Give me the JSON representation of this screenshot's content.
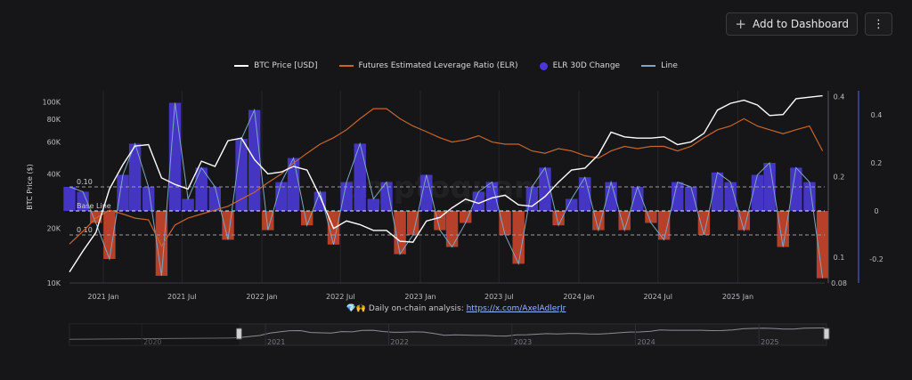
{
  "toolbar": {
    "add_label": "Add to Dashboard",
    "more_label": "⋮"
  },
  "legend": [
    {
      "label": "BTC Price [USD]",
      "color": "#ffffff",
      "kind": "line"
    },
    {
      "label": "Futures Estimated Leverage Ratio (ELR)",
      "color": "#c8652b",
      "kind": "line"
    },
    {
      "label": "ELR 30D Change",
      "color": "#4a38d6",
      "kind": "dot"
    },
    {
      "label": "Line",
      "color": "#7ea6c4",
      "kind": "line"
    }
  ],
  "footer": {
    "prefix": "💎🙌 Daily on-chain analysis: ",
    "link": "https://x.com/AxelAdlerJr"
  },
  "watermark": "cryptoquant",
  "chart_data": {
    "type": "line",
    "ylabel": "BTC Price ($)",
    "x_ticks": [
      "2021 Jan",
      "2021 Jul",
      "2022 Jan",
      "2022 Jul",
      "2023 Jan",
      "2023 Jul",
      "2024 Jan",
      "2024 Jul",
      "2025 Jan"
    ],
    "x_range": [
      "2020-10-15",
      "2025-07-20"
    ],
    "price_axis": {
      "scale": "log",
      "ticks": [
        "100K",
        "80K",
        "60K",
        "40K",
        "20K",
        "10K"
      ],
      "ylim": [
        10000,
        115000
      ]
    },
    "elr_axis": {
      "ticks": [
        "0.4",
        "0.2",
        "0.1",
        "0.08"
      ]
    },
    "change_axis": {
      "ticks": [
        "0.4",
        "0.2",
        "0",
        "-0.2"
      ],
      "ylim": [
        -0.3,
        0.5
      ]
    },
    "reference_lines": [
      {
        "label": "0.10",
        "value": 0.1
      },
      {
        "label": "Base Line",
        "value": 0
      },
      {
        "label": "0.10",
        "value": -0.1
      }
    ],
    "series": [
      {
        "name": "BTC Price [USD]",
        "x": [
          "2020-10",
          "2020-11",
          "2020-12",
          "2021-01",
          "2021-02",
          "2021-03",
          "2021-04",
          "2021-05",
          "2021-06",
          "2021-07",
          "2021-08",
          "2021-09",
          "2021-10",
          "2021-11",
          "2021-12",
          "2022-01",
          "2022-02",
          "2022-03",
          "2022-04",
          "2022-05",
          "2022-06",
          "2022-07",
          "2022-08",
          "2022-09",
          "2022-10",
          "2022-11",
          "2022-12",
          "2023-01",
          "2023-02",
          "2023-03",
          "2023-04",
          "2023-05",
          "2023-06",
          "2023-07",
          "2023-08",
          "2023-09",
          "2023-10",
          "2023-11",
          "2023-12",
          "2024-01",
          "2024-02",
          "2024-03",
          "2024-04",
          "2024-05",
          "2024-06",
          "2024-07",
          "2024-08",
          "2024-09",
          "2024-10",
          "2024-11",
          "2024-12",
          "2025-01",
          "2025-02",
          "2025-03",
          "2025-04",
          "2025-05",
          "2025-06",
          "2025-07"
        ],
        "values": [
          11500,
          15000,
          19000,
          33000,
          45000,
          57000,
          58000,
          38000,
          35000,
          33000,
          47000,
          44000,
          61000,
          63000,
          48000,
          40000,
          41000,
          44000,
          42000,
          30000,
          20000,
          22000,
          21000,
          19500,
          19500,
          17000,
          16800,
          22000,
          23000,
          26000,
          29000,
          27500,
          29500,
          30500,
          27000,
          26500,
          30000,
          36000,
          42000,
          43000,
          51000,
          68000,
          64000,
          63000,
          63000,
          64000,
          58000,
          60000,
          67000,
          90000,
          98000,
          102000,
          96000,
          84000,
          85000,
          104000,
          106000,
          108000
        ]
      },
      {
        "name": "Futures Estimated Leverage Ratio (ELR)",
        "x": [
          "2020-10",
          "2020-11",
          "2020-12",
          "2021-01",
          "2021-02",
          "2021-03",
          "2021-04",
          "2021-05",
          "2021-06",
          "2021-07",
          "2021-08",
          "2021-09",
          "2021-10",
          "2021-11",
          "2021-12",
          "2022-01",
          "2022-02",
          "2022-03",
          "2022-04",
          "2022-05",
          "2022-06",
          "2022-07",
          "2022-08",
          "2022-09",
          "2022-10",
          "2022-11",
          "2022-12",
          "2023-01",
          "2023-02",
          "2023-03",
          "2023-04",
          "2023-05",
          "2023-06",
          "2023-07",
          "2023-08",
          "2023-09",
          "2023-10",
          "2023-11",
          "2023-12",
          "2024-01",
          "2024-02",
          "2024-03",
          "2024-04",
          "2024-05",
          "2024-06",
          "2024-07",
          "2024-08",
          "2024-09",
          "2024-10",
          "2024-11",
          "2024-12",
          "2025-01",
          "2025-02",
          "2025-03",
          "2025-04",
          "2025-05",
          "2025-06",
          "2025-07"
        ],
        "values": [
          0.112,
          0.125,
          0.14,
          0.15,
          0.145,
          0.14,
          0.138,
          0.11,
          0.132,
          0.14,
          0.145,
          0.15,
          0.155,
          0.165,
          0.175,
          0.19,
          0.205,
          0.225,
          0.245,
          0.265,
          0.28,
          0.3,
          0.33,
          0.36,
          0.36,
          0.33,
          0.31,
          0.295,
          0.28,
          0.27,
          0.275,
          0.285,
          0.27,
          0.265,
          0.265,
          0.25,
          0.245,
          0.255,
          0.25,
          0.24,
          0.235,
          0.25,
          0.26,
          0.255,
          0.26,
          0.26,
          0.25,
          0.26,
          0.28,
          0.3,
          0.31,
          0.33,
          0.31,
          0.3,
          0.29,
          0.3,
          0.31,
          0.25
        ]
      },
      {
        "name": "ELR 30D Change",
        "x": [
          "2020-10",
          "2020-11",
          "2020-12",
          "2021-01",
          "2021-02",
          "2021-03",
          "2021-04",
          "2021-05",
          "2021-06",
          "2021-07",
          "2021-08",
          "2021-09",
          "2021-10",
          "2021-11",
          "2021-12",
          "2022-01",
          "2022-02",
          "2022-03",
          "2022-04",
          "2022-05",
          "2022-06",
          "2022-07",
          "2022-08",
          "2022-09",
          "2022-10",
          "2022-11",
          "2022-12",
          "2023-01",
          "2023-02",
          "2023-03",
          "2023-04",
          "2023-05",
          "2023-06",
          "2023-07",
          "2023-08",
          "2023-09",
          "2023-10",
          "2023-11",
          "2023-12",
          "2024-01",
          "2024-02",
          "2024-03",
          "2024-04",
          "2024-05",
          "2024-06",
          "2024-07",
          "2024-08",
          "2024-09",
          "2024-10",
          "2024-11",
          "2024-12",
          "2025-01",
          "2025-02",
          "2025-03",
          "2025-04",
          "2025-05",
          "2025-06",
          "2025-07"
        ],
        "values": [
          0.1,
          0.08,
          -0.05,
          -0.2,
          0.15,
          0.28,
          0.1,
          -0.27,
          0.45,
          0.05,
          0.18,
          0.1,
          -0.12,
          0.3,
          0.42,
          -0.08,
          0.12,
          0.22,
          -0.06,
          0.08,
          -0.14,
          0.12,
          0.28,
          0.05,
          0.12,
          -0.18,
          -0.1,
          0.15,
          -0.08,
          -0.15,
          -0.05,
          0.08,
          0.12,
          -0.1,
          -0.22,
          0.1,
          0.18,
          -0.06,
          0.05,
          0.14,
          -0.08,
          0.12,
          -0.08,
          0.1,
          -0.05,
          -0.12,
          0.12,
          0.1,
          -0.1,
          0.16,
          0.12,
          -0.08,
          0.15,
          0.2,
          -0.15,
          0.18,
          0.12,
          -0.28
        ]
      }
    ],
    "navigator": {
      "ticks": [
        "2020",
        "2021",
        "2022",
        "2023",
        "2024",
        "2025"
      ]
    }
  }
}
